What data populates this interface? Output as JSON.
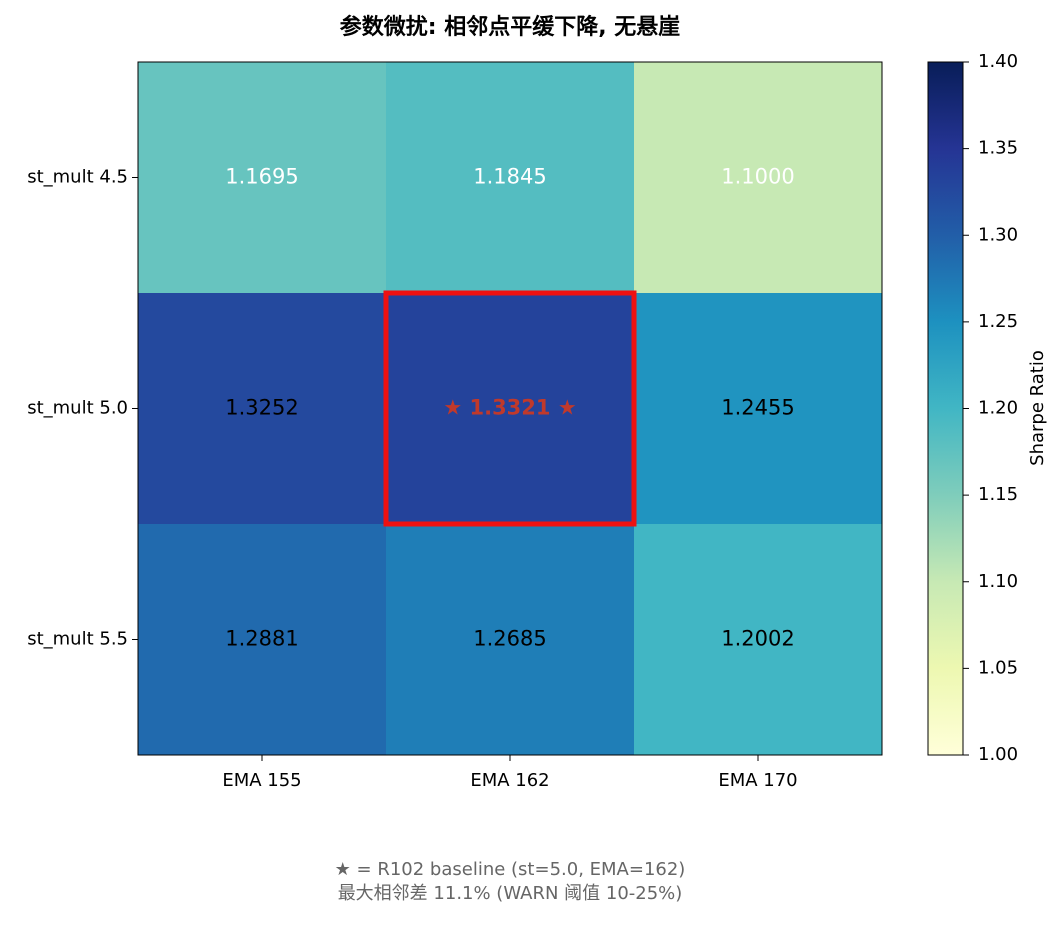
{
  "chart_data": {
    "type": "heatmap",
    "title": "参数微扰: 相邻点平缓下降, 无悬崖",
    "rows": [
      "st_mult 4.5",
      "st_mult 5.0",
      "st_mult 5.5"
    ],
    "categories": [
      "EMA 155",
      "EMA 162",
      "EMA 170"
    ],
    "values": [
      [
        1.1695,
        1.1845,
        1.1
      ],
      [
        1.3252,
        1.3321,
        1.2455
      ],
      [
        1.2881,
        1.2685,
        1.2002
      ]
    ],
    "value_labels": [
      [
        "1.1695",
        "1.1845",
        "1.1000"
      ],
      [
        "1.3252",
        "★ 1.3321 ★",
        "1.2455"
      ],
      [
        "1.2881",
        "1.2685",
        "1.2002"
      ]
    ],
    "cmap": "YlGnBu",
    "clim": [
      1.0,
      1.4
    ],
    "cticks": [
      {
        "value": 1.0,
        "label": "1.00"
      },
      1.05,
      {
        "value": 1.1,
        "label": "1.10"
      },
      1.15,
      {
        "value": 1.2,
        "label": "1.20"
      },
      1.25,
      {
        "value": 1.3,
        "label": "1.30"
      },
      1.35,
      {
        "value": 1.4,
        "label": "1.40"
      }
    ],
    "colorbar_label": "Sharpe Ratio",
    "highlight": {
      "row": 1,
      "col": 1,
      "color": "#ee1111",
      "text_color": "#c0392b"
    },
    "note": [
      "★ = R102 baseline (st=5.0, EMA=162)",
      "最大相邻差 11.1% (WARN 阈值 10-25%)"
    ]
  }
}
